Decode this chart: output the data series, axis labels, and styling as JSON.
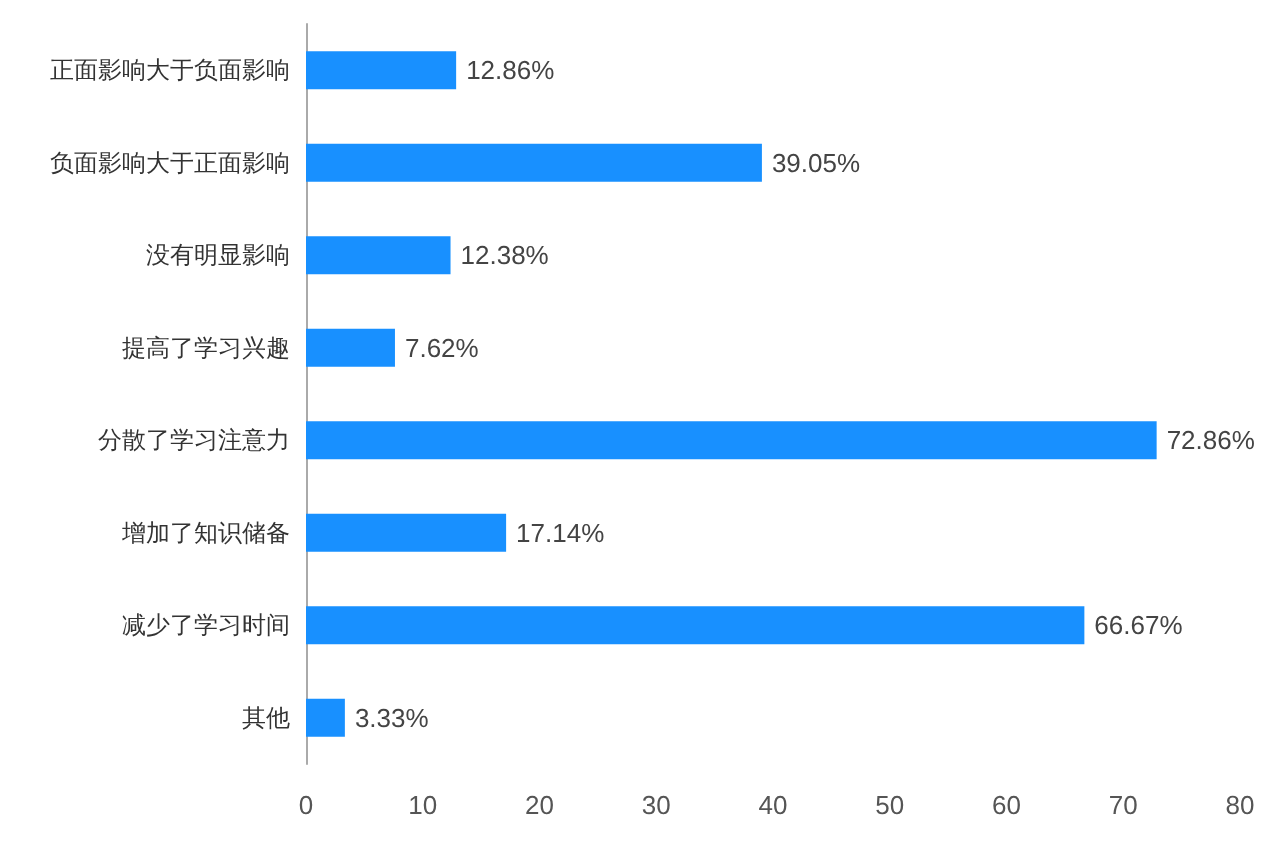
{
  "chart_data": {
    "type": "bar",
    "orientation": "horizontal",
    "categories": [
      "正面影响大于负面影响",
      "负面影响大于正面影响",
      "没有明显影响",
      "提高了学习兴趣",
      "分散了学习注意力",
      "增加了知识储备",
      "减少了学习时间",
      "其他"
    ],
    "values": [
      12.86,
      39.05,
      12.38,
      7.62,
      72.86,
      17.14,
      66.67,
      3.33
    ],
    "value_labels": [
      "12.86%",
      "39.05%",
      "12.38%",
      "7.62%",
      "72.86%",
      "17.14%",
      "66.67%",
      "3.33%"
    ],
    "color": "#1890ff",
    "xlim": [
      0,
      80
    ],
    "xticks": [
      0,
      10,
      20,
      30,
      40,
      50,
      60,
      70,
      80
    ],
    "grid": false
  }
}
